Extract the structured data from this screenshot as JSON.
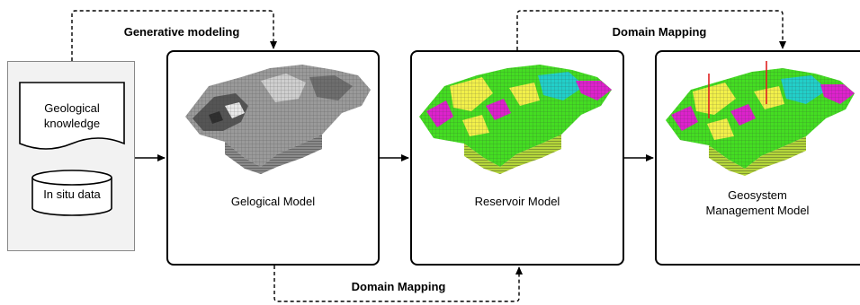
{
  "edges": {
    "generative_modeling": "Generative modeling",
    "domain_mapping_top": "Domain Mapping",
    "domain_mapping_bottom": "Domain Mapping"
  },
  "inputs": {
    "knowledge": "Geological knowledge",
    "knowledge_line1": "Geological",
    "knowledge_line2": "knowledge",
    "in_situ": "In situ data"
  },
  "models": {
    "geological": "Gelogical Model",
    "reservoir": "Reservoir Model",
    "geosystem": "Geosystem Management Model",
    "geosystem_line1": "Geosystem",
    "geosystem_line2": "Management Model"
  },
  "colors": {
    "input_panel": "#f2f2f2",
    "reservoir_green": "#44dd22",
    "reservoir_yellow": "#f2f04a",
    "reservoir_magenta": "#dd22cc",
    "reservoir_cyan": "#22cfc9",
    "well_red": "#e02020"
  }
}
